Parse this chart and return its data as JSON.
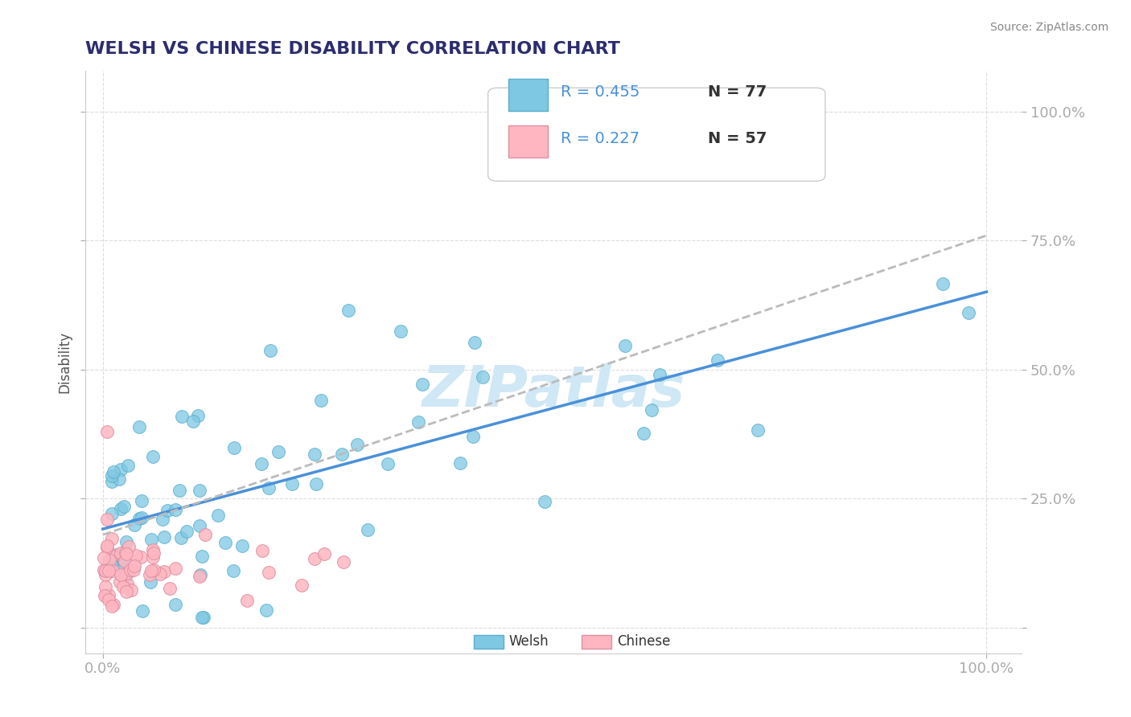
{
  "title": "WELSH VS CHINESE DISABILITY CORRELATION CHART",
  "source": "Source: ZipAtlas.com",
  "ylabel": "Disability",
  "welsh_color": "#7ec8e3",
  "chinese_color": "#ffb6c1",
  "welsh_edge_color": "#5aaecc",
  "chinese_edge_color": "#e090a0",
  "trend_welsh_color": "#4a90d9",
  "trend_chinese_color": "#bbbbbb",
  "grid_color": "#dddddd",
  "watermark_color": "#d0e8f5",
  "legend_R_welsh": "R = 0.455",
  "legend_N_welsh": "N = 77",
  "legend_R_chinese": "R = 0.227",
  "legend_N_chinese": "N = 57",
  "title_color": "#2c2c6e",
  "axis_label_color": "#555555",
  "tick_label_color": "#4a90d9",
  "background_color": "#ffffff"
}
